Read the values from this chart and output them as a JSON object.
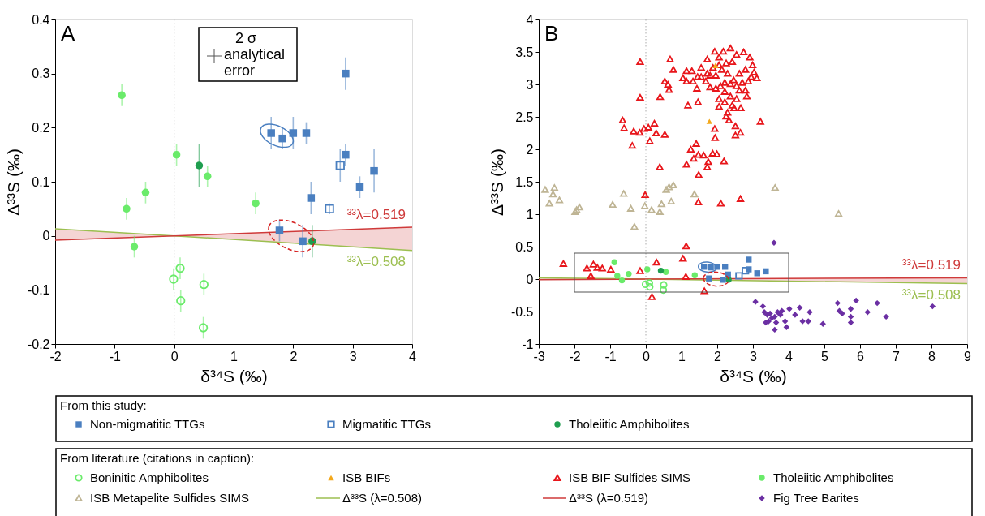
{
  "chart_data": [
    {
      "type": "scatter",
      "xlabel": "δ³⁴S (‰)",
      "ylabel": "Δ³³S (‰)",
      "xlim": [
        -2,
        4
      ],
      "ylim": [
        -0.2,
        0.4
      ],
      "xticks": [
        -2,
        -1,
        0,
        1,
        2,
        3,
        4
      ],
      "yticks": [
        -0.2,
        -0.1,
        0,
        0.1,
        0.2,
        0.3,
        0.4
      ],
      "ref_lines": [
        {
          "axis": "x",
          "value": 0,
          "color": "#aaaaaa",
          "line_style": "dotted"
        }
      ],
      "annotations": [
        "A",
        "2 σ analytical error",
        "³³λ=0.508",
        "³³λ=0.519"
      ],
      "series": [
        {
          "color": "#4a7fc0",
          "marker": "square",
          "x": [
            1.63,
            1.82,
            2.0,
            2.22,
            2.88,
            2.88,
            2.3,
            3.12,
            3.36,
            1.77,
            2.16
          ],
          "values": [
            0.19,
            0.18,
            0.19,
            0.19,
            0.3,
            0.15,
            0.07,
            0.09,
            0.12,
            0.01,
            -0.01
          ],
          "errors": [
            0.03,
            0.02,
            0.03,
            0.02,
            0.03,
            0.02,
            0.03,
            0.02,
            0.04,
            0.02,
            0.03
          ]
        },
        {
          "color": "#4a7fc0",
          "marker": "square",
          "x": [
            2.79,
            2.61
          ],
          "values": [
            0.13,
            0.05
          ],
          "errors": [
            0.03,
            0.01
          ]
        },
        {
          "color": "#1f9e4f",
          "marker": "circle",
          "x": [
            0.42,
            2.32
          ],
          "values": [
            0.13,
            -0.01
          ],
          "errors": [
            0.04,
            0.03
          ]
        },
        {
          "color": "#6aeb6a",
          "marker": "circle",
          "x": [
            -0.01,
            0.1,
            0.11,
            0.5,
            0.49
          ],
          "values": [
            -0.08,
            -0.06,
            -0.12,
            -0.09,
            -0.17
          ],
          "errors": [
            0.02,
            0.02,
            0.02,
            0.02,
            0.02
          ]
        },
        {
          "color": "#6aeb6a",
          "marker": "circle",
          "x": [
            -0.88,
            -0.8,
            -0.67,
            -0.48,
            0.04,
            0.56,
            1.37
          ],
          "values": [
            0.26,
            0.05,
            -0.02,
            0.08,
            0.15,
            0.11,
            0.06
          ],
          "errors": [
            0.02,
            0.02,
            0.02,
            0.02,
            0.02,
            0.02,
            0.02
          ]
        },
        {
          "type": "line",
          "color": "#9cbf50",
          "x": [
            -2,
            0,
            4
          ],
          "values": [
            0.013,
            0,
            -0.027
          ]
        },
        {
          "type": "line",
          "color": "#cf3a3a",
          "x": [
            -2,
            0,
            4
          ],
          "values": [
            -0.008,
            0,
            0.016
          ],
          "lower": [
            -0.008,
            0,
            -0.027
          ],
          "upper": [
            0.013,
            0,
            0.016
          ]
        }
      ]
    },
    {
      "type": "scatter",
      "xlabel": "δ³⁴S (‰)",
      "ylabel": "Δ³³S (‰)",
      "xlim": [
        -3,
        9
      ],
      "ylim": [
        -1,
        4
      ],
      "xticks": [
        -3,
        -2,
        -1,
        0,
        1,
        2,
        3,
        4,
        5,
        6,
        7,
        8,
        9
      ],
      "yticks": [
        -1,
        -0.5,
        0,
        0.5,
        1,
        1.5,
        2,
        2.5,
        3,
        3.5,
        4
      ],
      "legend": "bottom",
      "ref_lines": [
        {
          "axis": "x",
          "value": 0,
          "color": "#aaaaaa",
          "line_style": "dotted"
        }
      ],
      "annotations": [
        "B",
        "From this study:",
        "From literature (citations in caption):",
        "³³λ=0.508",
        "³³λ=0.519"
      ],
      "series": [
        {
          "name": "Non-migmatitic TTGs",
          "color": "#4a7fc0",
          "marker": "square",
          "x": [
            1.63,
            1.82,
            2.0,
            2.22,
            2.88,
            2.88,
            2.3,
            3.12,
            3.36,
            1.77,
            2.16
          ],
          "values": [
            0.19,
            0.18,
            0.19,
            0.19,
            0.3,
            0.15,
            0.07,
            0.09,
            0.12,
            0.01,
            -0.01
          ]
        },
        {
          "name": "Migmatitic TTGs",
          "color": "#4a7fc0",
          "marker": "square",
          "x": [
            2.79,
            2.61
          ],
          "values": [
            0.13,
            0.05
          ]
        },
        {
          "name": "Tholeiitic Amphibolites",
          "color": "#1f9e4f",
          "marker": "circle",
          "x": [
            0.42,
            2.32
          ],
          "values": [
            0.13,
            -0.01
          ]
        },
        {
          "name": "Boninitic Amphibolites",
          "color": "#6aeb6a",
          "marker": "circle",
          "x": [
            -0.01,
            0.1,
            0.11,
            0.5,
            0.49
          ],
          "values": [
            -0.08,
            -0.06,
            -0.12,
            -0.09,
            -0.17
          ]
        },
        {
          "name": "ISB BIFs",
          "color": "#f3a81b",
          "marker": "triangle",
          "x": [
            1.95,
            1.78
          ],
          "values": [
            3.29,
            2.43
          ]
        },
        {
          "name": "ISB BIF Sulfides SIMS",
          "color": "#e8161b",
          "marker": "triangle",
          "x": [
            -0.16,
            0.68,
            0.77,
            -0.16,
            0.53,
            0.62,
            0.65,
            0.4,
            -0.65,
            -0.61,
            -0.34,
            -0.17,
            -0.05,
            0.07,
            0.24,
            0.29,
            0.53,
            0.11,
            -0.38,
            0.39,
            1.18,
            1.46,
            1.14,
            1.26,
            1.41,
            1.47,
            1.62,
            1.34,
            1.87,
            1.99,
            1.72,
            1.75,
            1.48,
            2.19,
            1.93,
            1.94,
            3.21,
            2.51,
            2.65,
            2.51,
            2.33,
            2.25,
            2.05,
            2.47,
            2.66,
            1.04,
            1.14,
            1.29,
            1.14,
            1.32,
            1.45,
            1.55,
            1.72,
            1.93,
            2.05,
            2.17,
            2.37,
            2.54,
            2.74,
            2.91,
            2.99,
            3.11,
            3.03,
            2.87,
            2.79,
            2.83,
            2.62,
            2.54,
            2.37,
            2.21,
            2.09,
            1.96,
            1.8,
            1.68,
            1.8,
            1.96,
            2.13,
            2.29,
            2.46,
            2.62,
            2.79,
            2.42,
            2.25,
            2.05,
            1.88,
            1.72,
            1.55,
            1.43,
            2.37,
            2.21,
            2.54,
            2.7,
            2.95,
            2.05,
            2.21,
            2.42,
            2.29,
            -0.02,
            1.47,
            2.1,
            2.65,
            1.13,
            1.04,
            0.3,
            -2.31,
            -1.65,
            -1.47,
            -1.36,
            -1.22,
            -0.98,
            -1.54,
            -0.16,
            1.12,
            1.64,
            0.17
          ],
          "values": [
            3.35,
            3.39,
            3.23,
            2.8,
            3.05,
            3.0,
            2.92,
            2.81,
            2.45,
            2.33,
            2.28,
            2.26,
            2.32,
            2.34,
            2.4,
            2.25,
            2.23,
            2.13,
            2.06,
            1.73,
            2.68,
            2.73,
            1.77,
            2.0,
            2.09,
            1.92,
            1.91,
            1.86,
            1.94,
            1.93,
            1.73,
            1.81,
            1.61,
            1.82,
            2.32,
            2.18,
            2.43,
            2.22,
            2.26,
            2.36,
            2.45,
            2.51,
            2.66,
            2.64,
            2.64,
            3.1,
            3.21,
            3.21,
            3.05,
            3.05,
            3.12,
            3.26,
            3.39,
            3.51,
            3.42,
            3.51,
            3.56,
            3.46,
            3.5,
            3.42,
            3.3,
            3.1,
            3.19,
            3.05,
            2.91,
            2.82,
            2.91,
            2.78,
            2.82,
            2.89,
            2.98,
            2.94,
            2.96,
            3.05,
            3.14,
            3.14,
            3.23,
            3.17,
            3.07,
            3.17,
            3.23,
            3.35,
            3.33,
            3.3,
            3.26,
            3.17,
            3.12,
            2.94,
            3.01,
            3.03,
            2.98,
            3.03,
            3.12,
            2.78,
            2.73,
            2.68,
            2.57,
            1.3,
            1.19,
            1.17,
            1.24,
            0.51,
            0.32,
            0.26,
            0.24,
            0.17,
            0.23,
            0.18,
            0.17,
            0.15,
            0.05,
            0.13,
            0.04,
            -0.18,
            -0.27
          ]
        },
        {
          "name": "Tholeiitic Amphibolites",
          "color": "#6aeb6a",
          "marker": "circle",
          "x": [
            -0.88,
            -0.8,
            -0.67,
            -0.48,
            0.04,
            0.56,
            1.37
          ],
          "values": [
            0.26,
            0.05,
            -0.02,
            0.08,
            0.15,
            0.11,
            0.06
          ]
        },
        {
          "name": "ISB Metapelite Sulfides SIMS",
          "color": "#bfb595",
          "marker": "triangle",
          "x": [
            -2.82,
            -2.56,
            -2.6,
            -0.62,
            0.57,
            0.65,
            0.77,
            3.62,
            1.36,
            -2.7,
            -2.42,
            -1.98,
            -1.86,
            -1.94,
            -0.93,
            -0.42,
            -0.32,
            -0.03,
            0.16,
            0.39,
            0.44,
            0.71,
            5.4
          ],
          "values": [
            1.38,
            1.41,
            1.31,
            1.32,
            1.38,
            1.42,
            1.45,
            1.41,
            1.31,
            1.17,
            1.22,
            1.04,
            1.11,
            1.07,
            1.15,
            1.09,
            0.81,
            1.13,
            1.07,
            1.04,
            1.16,
            1.2,
            1.01
          ]
        },
        {
          "name": "Δ³³S (λ=0.508)",
          "type": "line",
          "color": "#9cbf50",
          "x": [
            -3,
            0,
            9
          ],
          "values": [
            0.02,
            0,
            -0.07
          ]
        },
        {
          "name": "Δ³³S (λ=0.519)",
          "type": "line",
          "color": "#cf3a3a",
          "x": [
            -3,
            0,
            9
          ],
          "values": [
            -0.01,
            0,
            0.02
          ],
          "lower": [
            -0.01,
            0,
            -0.07
          ],
          "upper": [
            0.02,
            0,
            0.02
          ]
        },
        {
          "name": "Fig Tree Barites",
          "color": "#6b2fa3",
          "marker": "diamond",
          "x": [
            3.59,
            3.07,
            3.28,
            3.32,
            3.4,
            3.48,
            3.53,
            3.44,
            3.61,
            3.69,
            3.77,
            3.65,
            3.81,
            3.36,
            3.61,
            4.02,
            4.31,
            4.18,
            4.59,
            4.39,
            4.55,
            3.94,
            3.9,
            4.96,
            5.37,
            5.42,
            5.5,
            5.74,
            5.74,
            5.74,
            5.89,
            6.21,
            6.48,
            6.73,
            8.03
          ],
          "values": [
            0.56,
            -0.35,
            -0.42,
            -0.51,
            -0.55,
            -0.53,
            -0.6,
            -0.65,
            -0.58,
            -0.51,
            -0.55,
            -0.67,
            -0.49,
            -0.67,
            -0.78,
            -0.46,
            -0.44,
            -0.55,
            -0.51,
            -0.65,
            -0.65,
            -0.74,
            -0.65,
            -0.69,
            -0.37,
            -0.49,
            -0.53,
            -0.46,
            -0.58,
            -0.67,
            -0.33,
            -0.51,
            -0.37,
            -0.58,
            -0.42
          ]
        }
      ]
    }
  ]
}
